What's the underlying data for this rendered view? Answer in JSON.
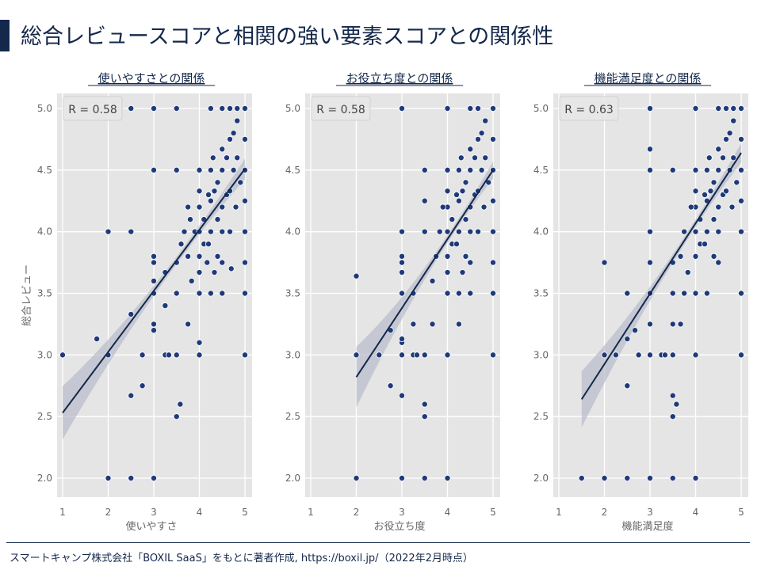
{
  "title": "総合レビュースコアと相関の強い要素スコアとの関係性",
  "footer": "スマートキャンプ株式会社「BOXIL SaaS」をもとに著者作成, https://boxil.jp/（2022年2月時点）",
  "colors": {
    "point": "#1f3a7a",
    "line": "#14284b",
    "band": "#b8bccb",
    "panel_bg": "#e5e5e5",
    "title": "#14284b"
  },
  "chart_data": [
    {
      "type": "scatter",
      "title": "使いやすさとの関係",
      "xlabel": "使いやすさ",
      "ylabel": "総合レビュー",
      "annotation": "R = 0.58",
      "xlim": [
        1,
        5
      ],
      "ylim": [
        2,
        5
      ],
      "xticks": [
        "1",
        "2",
        "3",
        "4",
        "5"
      ],
      "yticks": [
        "2.0",
        "2.5",
        "3.0",
        "3.5",
        "4.0",
        "4.5",
        "5.0"
      ],
      "grid": true,
      "regression": {
        "x": [
          1,
          5
        ],
        "y": [
          2.53,
          4.51
        ]
      },
      "points": [
        [
          1,
          3
        ],
        [
          1.75,
          3.13
        ],
        [
          2,
          4
        ],
        [
          2,
          3
        ],
        [
          2,
          2
        ],
        [
          2.5,
          4
        ],
        [
          2.5,
          2
        ],
        [
          2.5,
          3.33
        ],
        [
          2.5,
          2.67
        ],
        [
          2.5,
          5
        ],
        [
          2.75,
          3
        ],
        [
          2.75,
          2.75
        ],
        [
          3,
          2
        ],
        [
          3,
          5
        ],
        [
          3,
          3.25
        ],
        [
          3,
          3.2
        ],
        [
          3,
          3.5
        ],
        [
          3,
          3.6
        ],
        [
          3,
          3.75
        ],
        [
          3,
          3.8
        ],
        [
          3,
          4.5
        ],
        [
          3.25,
          3
        ],
        [
          3.25,
          3.4
        ],
        [
          3.33,
          3
        ],
        [
          3.5,
          3
        ],
        [
          3.5,
          2.5
        ],
        [
          3.58,
          2.6
        ],
        [
          3.5,
          3.5
        ],
        [
          3.5,
          4.5
        ],
        [
          3.75,
          3.25
        ],
        [
          4,
          3
        ],
        [
          4,
          3.1
        ],
        [
          5,
          3
        ],
        [
          5,
          3.5
        ],
        [
          5,
          5
        ],
        [
          4.83,
          5
        ],
        [
          4.67,
          5
        ],
        [
          4.5,
          5
        ],
        [
          4.25,
          5
        ],
        [
          3.5,
          5
        ],
        [
          3.25,
          3.67
        ],
        [
          3.5,
          3.75
        ],
        [
          3.67,
          4
        ],
        [
          3.75,
          3.8
        ],
        [
          3.75,
          4.2
        ],
        [
          3.83,
          3.6
        ],
        [
          3.9,
          4
        ],
        [
          4,
          3.5
        ],
        [
          4,
          3.67
        ],
        [
          4,
          3.8
        ],
        [
          4,
          4
        ],
        [
          4,
          4.2
        ],
        [
          4,
          4.33
        ],
        [
          4,
          4.5
        ],
        [
          4.1,
          3.9
        ],
        [
          4.1,
          4.1
        ],
        [
          4.17,
          3.75
        ],
        [
          4.2,
          4.3
        ],
        [
          4.25,
          3.5
        ],
        [
          4.25,
          4
        ],
        [
          4.25,
          4.25
        ],
        [
          4.25,
          4.5
        ],
        [
          4.3,
          4.6
        ],
        [
          4.33,
          3.67
        ],
        [
          4.33,
          4.33
        ],
        [
          4.4,
          4.1
        ],
        [
          4.4,
          4.4
        ],
        [
          4.5,
          3.5
        ],
        [
          4.5,
          3.75
        ],
        [
          4.5,
          4
        ],
        [
          4.5,
          4.2
        ],
        [
          4.5,
          4.5
        ],
        [
          4.5,
          4.67
        ],
        [
          4.6,
          4.3
        ],
        [
          4.6,
          4.6
        ],
        [
          4.67,
          4
        ],
        [
          4.67,
          4.33
        ],
        [
          4.67,
          4.75
        ],
        [
          4.75,
          4.5
        ],
        [
          4.75,
          4.8
        ],
        [
          4.8,
          4.2
        ],
        [
          4.83,
          4.6
        ],
        [
          4.83,
          4.9
        ],
        [
          4.9,
          4.4
        ],
        [
          5,
          4
        ],
        [
          5,
          4.25
        ],
        [
          5,
          4.5
        ],
        [
          5,
          4.75
        ],
        [
          5,
          3.75
        ],
        [
          4.2,
          3.9
        ],
        [
          3.6,
          3.9
        ],
        [
          3.8,
          4.1
        ],
        [
          4.4,
          3.8
        ],
        [
          4.7,
          3.7
        ]
      ]
    },
    {
      "type": "scatter",
      "title": "お役立ち度との関係",
      "xlabel": "お役立ち度",
      "ylabel": "",
      "annotation": "R = 0.58",
      "xlim": [
        1,
        5
      ],
      "ylim": [
        2,
        5
      ],
      "xticks": [
        "1",
        "2",
        "3",
        "4",
        "5"
      ],
      "yticks": [
        "2.0",
        "2.5",
        "3.0",
        "3.5",
        "4.0",
        "4.5",
        "5.0"
      ],
      "grid": true,
      "regression": {
        "x": [
          2,
          5
        ],
        "y": [
          2.82,
          4.5
        ]
      },
      "points": [
        [
          2,
          3.64
        ],
        [
          2,
          3
        ],
        [
          2,
          2
        ],
        [
          2.5,
          3
        ],
        [
          2.75,
          3.2
        ],
        [
          2.75,
          2.75
        ],
        [
          3,
          5
        ],
        [
          3,
          2
        ],
        [
          3,
          2.67
        ],
        [
          3,
          3.1
        ],
        [
          3,
          3.13
        ],
        [
          3,
          3
        ],
        [
          3,
          3.5
        ],
        [
          3,
          3.75
        ],
        [
          3,
          3.8
        ],
        [
          3,
          3.67
        ],
        [
          3,
          4
        ],
        [
          3.25,
          3.5
        ],
        [
          3.25,
          3.25
        ],
        [
          3.25,
          3
        ],
        [
          3.33,
          3
        ],
        [
          3.5,
          2.5
        ],
        [
          3.5,
          2.6
        ],
        [
          3.5,
          2
        ],
        [
          3.5,
          3
        ],
        [
          3.5,
          4
        ],
        [
          3.5,
          4.25
        ],
        [
          3.5,
          4.5
        ],
        [
          3.67,
          3.25
        ],
        [
          4,
          2
        ],
        [
          4,
          5
        ],
        [
          4,
          3
        ],
        [
          4,
          3.5
        ],
        [
          4.25,
          3.25
        ],
        [
          5,
          3
        ],
        [
          5,
          3.5
        ],
        [
          5,
          5
        ],
        [
          4.5,
          5
        ],
        [
          4.67,
          5
        ],
        [
          3.67,
          3.6
        ],
        [
          3.75,
          3.8
        ],
        [
          3.83,
          4
        ],
        [
          4,
          3.67
        ],
        [
          4,
          3.8
        ],
        [
          4,
          4
        ],
        [
          4,
          4.2
        ],
        [
          4,
          4.33
        ],
        [
          4,
          4.5
        ],
        [
          4.1,
          3.9
        ],
        [
          4.1,
          4.1
        ],
        [
          4.2,
          4.3
        ],
        [
          4.25,
          3.5
        ],
        [
          4.25,
          4
        ],
        [
          4.25,
          4.25
        ],
        [
          4.25,
          4.5
        ],
        [
          4.3,
          4.6
        ],
        [
          4.33,
          3.67
        ],
        [
          4.33,
          4.33
        ],
        [
          4.4,
          4.1
        ],
        [
          4.4,
          4.4
        ],
        [
          4.5,
          3.5
        ],
        [
          4.5,
          3.75
        ],
        [
          4.5,
          4
        ],
        [
          4.5,
          4.2
        ],
        [
          4.5,
          4.5
        ],
        [
          4.5,
          4.67
        ],
        [
          4.6,
          4.3
        ],
        [
          4.6,
          4.6
        ],
        [
          4.67,
          4
        ],
        [
          4.67,
          4.33
        ],
        [
          4.67,
          4.75
        ],
        [
          4.75,
          4.5
        ],
        [
          4.75,
          4.8
        ],
        [
          4.8,
          4.2
        ],
        [
          4.83,
          4.6
        ],
        [
          4.83,
          4.9
        ],
        [
          4.9,
          4.4
        ],
        [
          5,
          4
        ],
        [
          5,
          4.25
        ],
        [
          5,
          4.5
        ],
        [
          5,
          4.75
        ],
        [
          5,
          3.75
        ],
        [
          4.2,
          3.9
        ],
        [
          3.9,
          4.2
        ],
        [
          4.4,
          3.8
        ]
      ]
    },
    {
      "type": "scatter",
      "title": "機能満足度との関係",
      "xlabel": "機能満足度",
      "ylabel": "",
      "annotation": "R = 0.63",
      "xlim": [
        1,
        5
      ],
      "ylim": [
        2,
        5
      ],
      "xticks": [
        "1",
        "2",
        "3",
        "4",
        "5"
      ],
      "yticks": [
        "2.0",
        "2.5",
        "3.0",
        "3.5",
        "4.0",
        "4.5",
        "5.0"
      ],
      "grid": true,
      "regression": {
        "x": [
          1.5,
          5
        ],
        "y": [
          2.64,
          4.64
        ]
      },
      "points": [
        [
          1.5,
          2
        ],
        [
          2,
          2
        ],
        [
          2,
          3.75
        ],
        [
          2,
          3
        ],
        [
          2.25,
          3
        ],
        [
          2.5,
          2
        ],
        [
          2.5,
          2.75
        ],
        [
          2.5,
          3.5
        ],
        [
          2.5,
          3.13
        ],
        [
          2.67,
          3.2
        ],
        [
          2.75,
          3
        ],
        [
          3,
          2
        ],
        [
          3,
          5
        ],
        [
          3,
          3
        ],
        [
          3,
          4.67
        ],
        [
          3,
          4.5
        ],
        [
          3,
          3.5
        ],
        [
          3,
          3.25
        ],
        [
          3,
          3.75
        ],
        [
          3,
          4
        ],
        [
          3.25,
          3
        ],
        [
          3.33,
          3
        ],
        [
          3.5,
          2
        ],
        [
          3.5,
          2.5
        ],
        [
          3.5,
          2.67
        ],
        [
          3.58,
          2.6
        ],
        [
          3.5,
          3
        ],
        [
          3.5,
          3.25
        ],
        [
          3.5,
          3.5
        ],
        [
          3.5,
          4.5
        ],
        [
          3.67,
          3.25
        ],
        [
          3.75,
          3.5
        ],
        [
          4,
          2
        ],
        [
          4,
          3
        ],
        [
          4,
          5
        ],
        [
          5,
          3
        ],
        [
          5,
          3.5
        ],
        [
          5,
          5
        ],
        [
          4.67,
          5
        ],
        [
          4.83,
          5
        ],
        [
          4.5,
          5
        ],
        [
          3.5,
          3.75
        ],
        [
          3.67,
          3.8
        ],
        [
          3.75,
          4
        ],
        [
          3.83,
          3.67
        ],
        [
          4,
          3.5
        ],
        [
          4,
          3.8
        ],
        [
          4,
          4
        ],
        [
          4,
          4.2
        ],
        [
          4,
          4.33
        ],
        [
          4,
          4.5
        ],
        [
          4.1,
          3.9
        ],
        [
          4.1,
          4.1
        ],
        [
          4.2,
          4.3
        ],
        [
          4.25,
          3.5
        ],
        [
          4.25,
          4
        ],
        [
          4.25,
          4.25
        ],
        [
          4.25,
          4.5
        ],
        [
          4.3,
          4.6
        ],
        [
          4.33,
          4.33
        ],
        [
          4.4,
          4.1
        ],
        [
          4.4,
          4.4
        ],
        [
          4.5,
          3.75
        ],
        [
          4.5,
          4
        ],
        [
          4.5,
          4.2
        ],
        [
          4.5,
          4.5
        ],
        [
          4.5,
          4.67
        ],
        [
          4.6,
          4.3
        ],
        [
          4.6,
          4.6
        ],
        [
          4.67,
          4.33
        ],
        [
          4.67,
          4.75
        ],
        [
          4.75,
          4.5
        ],
        [
          4.75,
          4.8
        ],
        [
          4.8,
          4.2
        ],
        [
          4.83,
          4.6
        ],
        [
          4.83,
          4.9
        ],
        [
          4.9,
          4.4
        ],
        [
          5,
          4
        ],
        [
          5,
          4.25
        ],
        [
          5,
          4.5
        ],
        [
          5,
          4.75
        ],
        [
          4.2,
          3.9
        ],
        [
          3.9,
          4.2
        ],
        [
          4.4,
          3.8
        ]
      ]
    }
  ]
}
